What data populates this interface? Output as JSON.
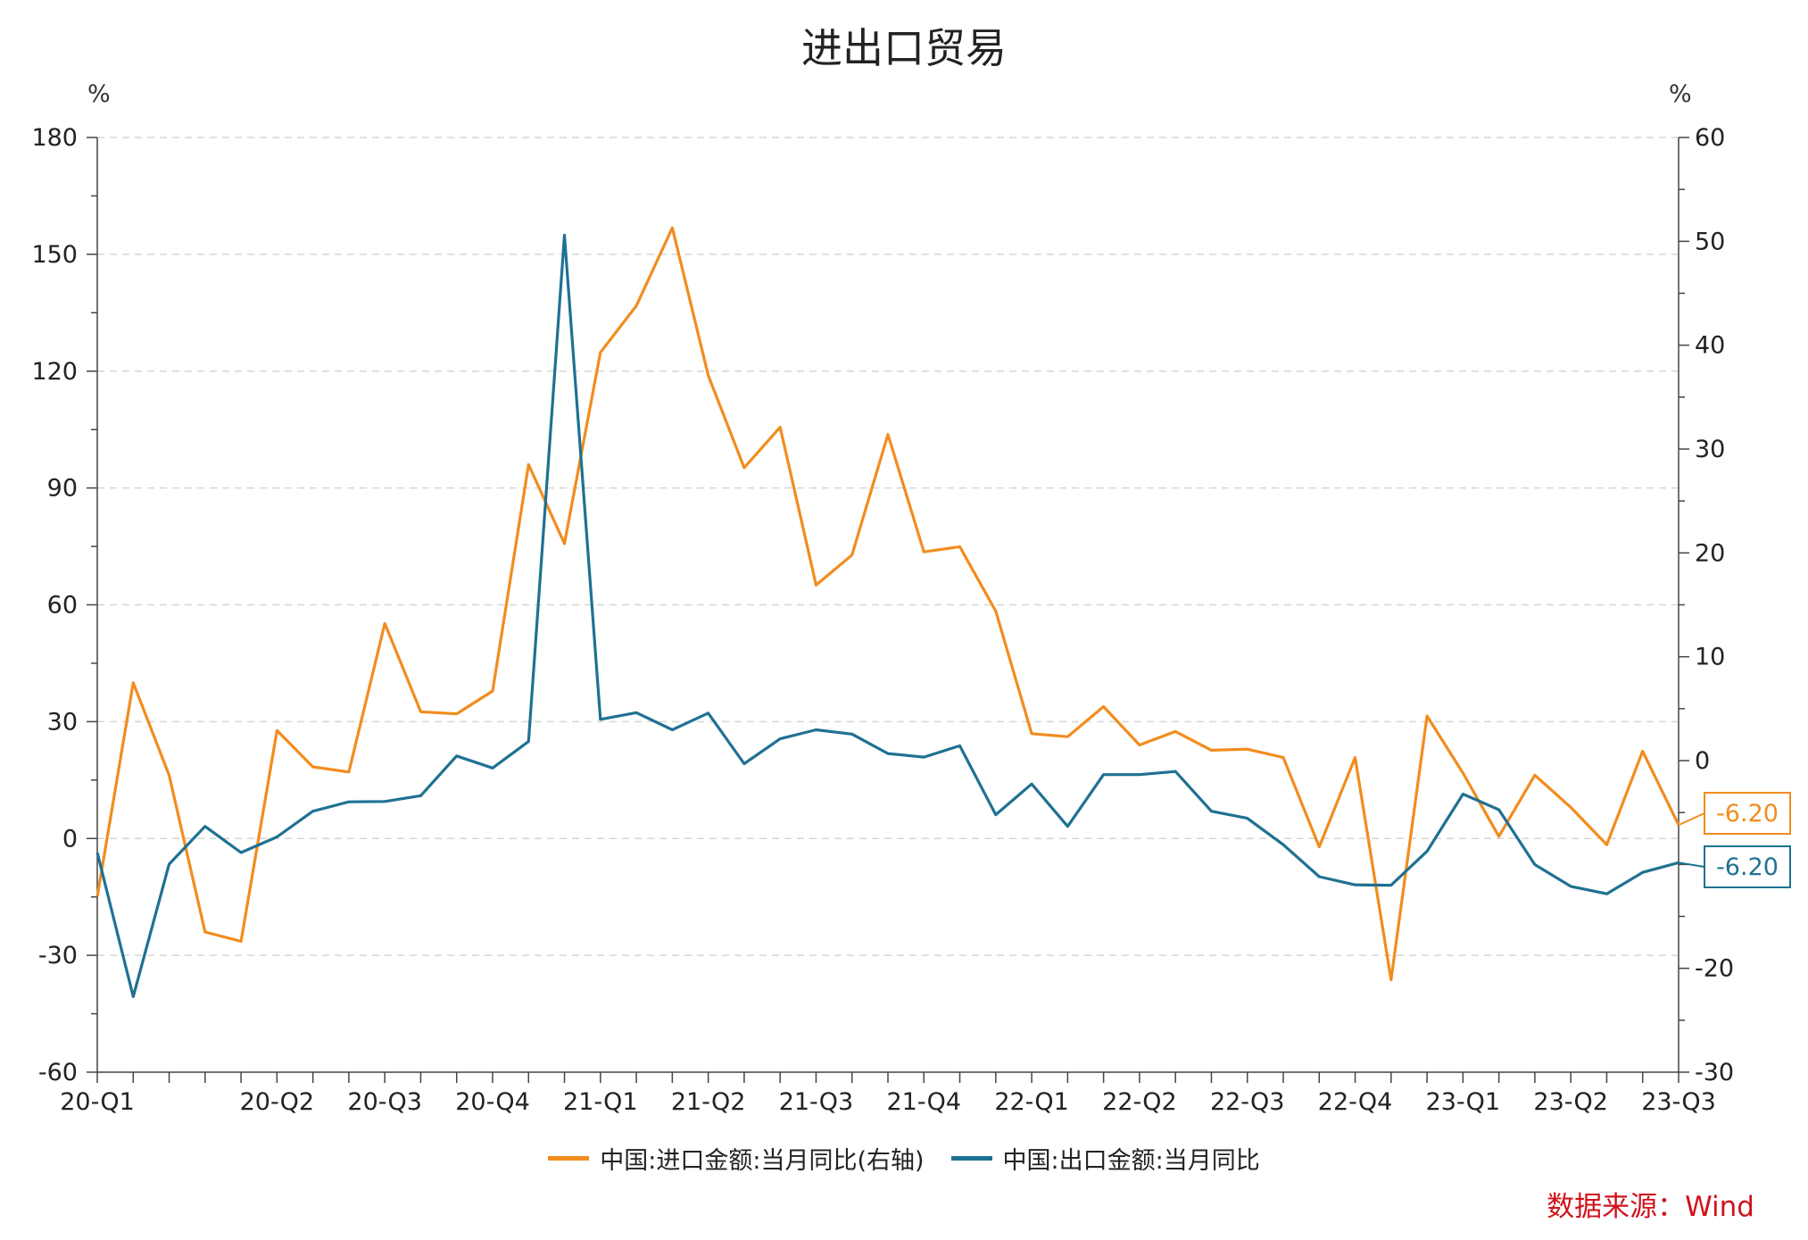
{
  "chart_data": {
    "type": "line",
    "title": "进出口贸易",
    "left_unit": "%",
    "right_unit": "%",
    "left_axis": {
      "ticks": [
        180,
        150,
        120,
        90,
        60,
        30,
        0,
        -30,
        -60
      ],
      "ylim": [
        -60,
        180
      ]
    },
    "right_axis": {
      "ticks": [
        60,
        50,
        40,
        30,
        20,
        10,
        0,
        -20,
        -30
      ],
      "ylim": [
        -30,
        60
      ]
    },
    "x_labels": [
      "20-Q1",
      "20-Q2",
      "20-Q3",
      "20-Q4",
      "21-Q1",
      "21-Q2",
      "21-Q3",
      "21-Q4",
      "22-Q1",
      "22-Q2",
      "22-Q3",
      "22-Q4",
      "23-Q1",
      "23-Q2",
      "23-Q3"
    ],
    "grid": true,
    "series": [
      {
        "name": "中国:进口金额:当月同比(右轴)",
        "axis": "right",
        "color": "#f28c1e",
        "end_label": "-6.20",
        "values": [
          -13.1,
          7.5,
          -1.4,
          -16.5,
          -17.4,
          2.9,
          -0.6,
          -1.1,
          13.2,
          4.7,
          4.5,
          6.7,
          28.5,
          20.9,
          39.3,
          43.8,
          51.3,
          37.1,
          28.2,
          32.1,
          16.9,
          19.8,
          31.4,
          20.1,
          20.6,
          14.4,
          2.6,
          2.3,
          5.2,
          1.5,
          2.8,
          1.0,
          1.1,
          0.3,
          -8.3,
          0.3,
          -21.1,
          4.3,
          -1.2,
          -7.3,
          -1.4,
          -4.5,
          -8.1,
          0.9,
          -6.2
        ]
      },
      {
        "name": "中国:出口金额:当月同比",
        "axis": "left",
        "color": "#1f7192",
        "end_label": "-6.20",
        "values": [
          -3.6,
          -40.6,
          -6.6,
          3.1,
          -3.6,
          0.4,
          7.0,
          9.4,
          9.5,
          11.0,
          21.2,
          18.1,
          24.9,
          154.9,
          30.6,
          32.3,
          27.9,
          32.2,
          19.2,
          25.6,
          27.9,
          26.8,
          21.8,
          20.9,
          23.8,
          6.1,
          14.0,
          3.1,
          16.4,
          16.4,
          17.2,
          7.0,
          5.2,
          -1.6,
          -9.8,
          -11.9,
          -12.0,
          -3.3,
          11.4,
          7.4,
          -6.7,
          -12.3,
          -14.2,
          -8.7,
          -6.2
        ]
      }
    ]
  },
  "source": "数据来源：Wind"
}
